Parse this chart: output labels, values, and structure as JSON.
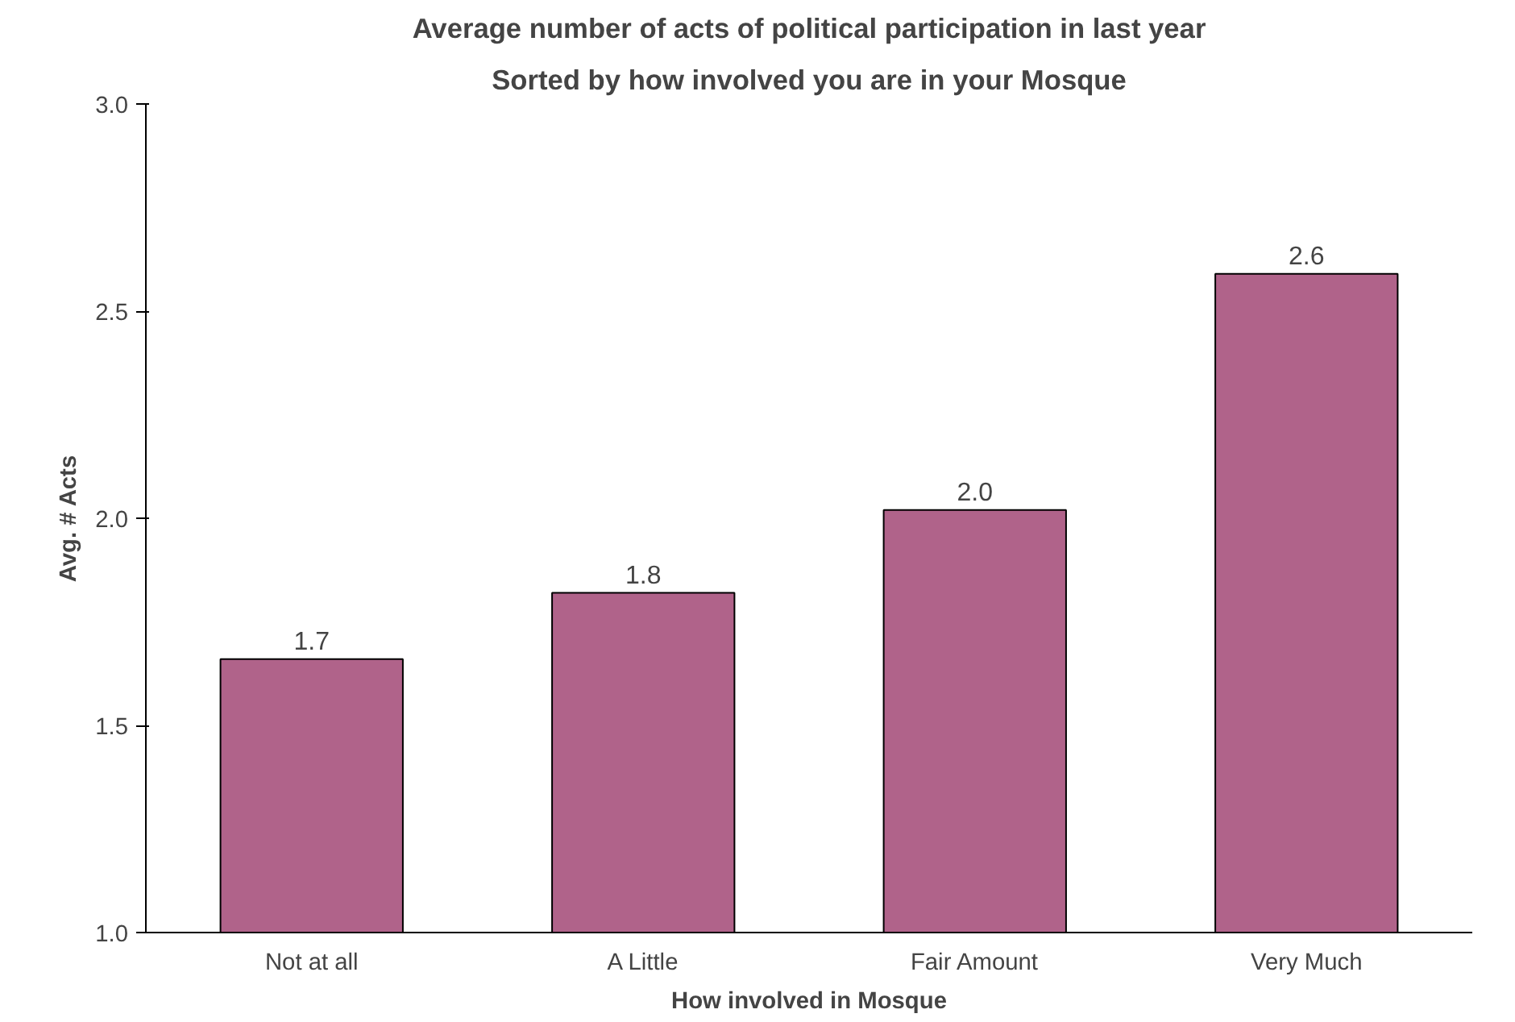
{
  "chart_data": {
    "type": "bar",
    "title": "Average number of acts of political participation in last year",
    "subtitle": "Sorted by how involved you are in your Mosque",
    "xlabel": "How involved in Mosque",
    "ylabel": "Avg. # Acts",
    "categories": [
      "Not at all",
      "A Little",
      "Fair Amount",
      "Very Much"
    ],
    "values": [
      1.66,
      1.82,
      2.02,
      2.59
    ],
    "value_labels": [
      "1.7",
      "1.8",
      "2.0",
      "2.6"
    ],
    "color": "#b0638a",
    "ylim": [
      1.0,
      3.0
    ],
    "yticks": [
      "1.0",
      "1.5",
      "2.0",
      "2.5",
      "3.0"
    ],
    "grid": false
  }
}
